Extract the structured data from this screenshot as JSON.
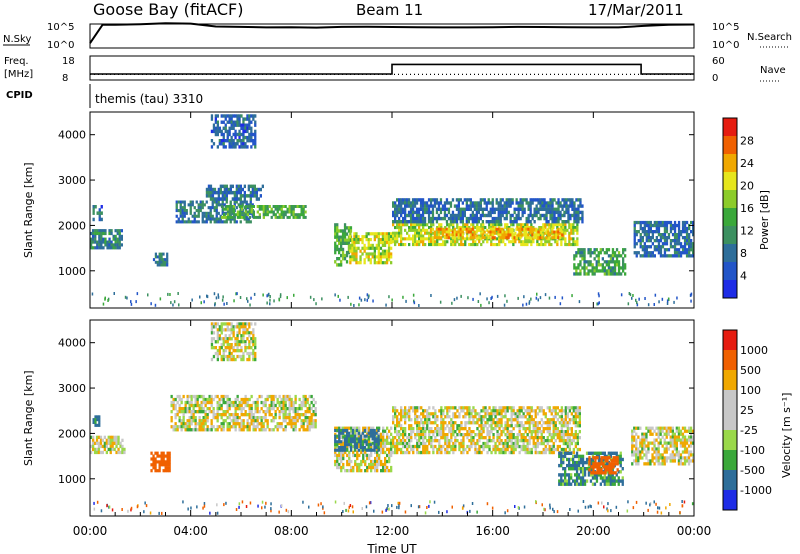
{
  "header": {
    "station": "Goose Bay (fitACF)",
    "beam": "Beam 11",
    "date": "17/Mar/2011"
  },
  "nsky_panel": {
    "left_label": "N.Sky",
    "right_label": "N.Search",
    "left_ticks": [
      "10^5",
      "10^0"
    ],
    "right_ticks": [
      "10^5",
      "10^0"
    ]
  },
  "freq_panel": {
    "left_label_top": "Freq.",
    "left_label_bottom": "[MHz]",
    "right_label": "Nave",
    "left_ticks": [
      "18",
      "8"
    ],
    "right_ticks": [
      "60",
      "0"
    ],
    "cpid_label": "CPID",
    "cpid_text": "themis (tau) 3310"
  },
  "power_panel": {
    "ylabel": "Slant Range [km]",
    "yticks": [
      "4000",
      "3000",
      "2000",
      "1000"
    ],
    "colorbar_label": "Power [dB]",
    "colorbar_ticks": [
      "28",
      "24",
      "20",
      "16",
      "12",
      "8",
      "4"
    ]
  },
  "velocity_panel": {
    "ylabel": "Slant Range [km]",
    "yticks": [
      "4000",
      "3000",
      "2000",
      "1000"
    ],
    "colorbar_label": "Velocity [m s⁻¹]",
    "colorbar_ticks": [
      "1000",
      "500",
      "100",
      "25",
      "-25",
      "-100",
      "-500",
      "-1000"
    ]
  },
  "xaxis": {
    "label": "Time UT",
    "ticks": [
      "00:00",
      "04:00",
      "08:00",
      "12:00",
      "16:00",
      "20:00",
      "00:00"
    ]
  },
  "colors": {
    "power_scale": [
      "#1e2ce6",
      "#2255c8",
      "#2e6e9a",
      "#3c9060",
      "#3aa83a",
      "#8ccc2a",
      "#e6e61c",
      "#f0a800",
      "#f06000",
      "#e61c10"
    ],
    "velocity_scale": [
      "#1e2ce6",
      "#2e6e9a",
      "#3aa83a",
      "#9ad84a",
      "#c8c8c8",
      "#c8c8c8",
      "#f0a800",
      "#f06000",
      "#e61c10"
    ]
  },
  "chart_data": [
    {
      "type": "line",
      "title": "N.Sky",
      "x_units": "hours UT",
      "x": [
        0,
        0.5,
        1,
        2,
        3,
        4,
        5,
        6,
        7,
        8,
        9,
        10,
        11,
        12,
        13,
        14,
        15,
        16,
        17,
        18,
        19,
        20,
        21,
        22,
        23,
        24
      ],
      "series": [
        {
          "name": "N.Sky",
          "values": [
            10,
            70000,
            70000,
            90000,
            140000,
            120000,
            30000,
            25000,
            20000,
            22000,
            18000,
            25000,
            28000,
            24000,
            22000,
            20000,
            20000,
            22000,
            25000,
            24000,
            22000,
            20000,
            20000,
            40000,
            70000,
            80000
          ]
        }
      ],
      "yscale": "log",
      "ylim": [
        1,
        100000
      ]
    },
    {
      "type": "line",
      "title": "Freq.",
      "x_units": "hours UT",
      "x": [
        0,
        12,
        12,
        21.9,
        21.9,
        24
      ],
      "series": [
        {
          "name": "Freq.",
          "values": [
            10.5,
            10.5,
            14.5,
            14.5,
            10.5,
            10.5
          ]
        },
        {
          "name": "Nave",
          "values": [
            14,
            14,
            14,
            14,
            14,
            14
          ]
        }
      ],
      "ylim": [
        8,
        18
      ],
      "y2lim": [
        0,
        60
      ]
    },
    {
      "type": "heatmap",
      "title": "Power [dB]",
      "xlabel": "Time UT",
      "ylabel": "Slant Range [km]",
      "xlim": [
        0,
        24
      ],
      "ylim": [
        180,
        4500
      ],
      "zlim": [
        0,
        30
      ],
      "regions": [
        {
          "t0": 0.0,
          "t1": 1.3,
          "r0": 1480,
          "r1": 1920,
          "power": 9
        },
        {
          "t0": 0.1,
          "t1": 0.5,
          "r0": 2100,
          "r1": 2450,
          "power": 6
        },
        {
          "t0": 2.5,
          "t1": 3.1,
          "r0": 1100,
          "r1": 1400,
          "power": 8
        },
        {
          "t0": 3.4,
          "t1": 6.5,
          "r0": 2050,
          "r1": 2550,
          "power": 8
        },
        {
          "t0": 5.2,
          "t1": 8.6,
          "r0": 2150,
          "r1": 2450,
          "power": 13
        },
        {
          "t0": 4.6,
          "t1": 6.9,
          "r0": 2550,
          "r1": 2900,
          "power": 7
        },
        {
          "t0": 4.8,
          "t1": 6.6,
          "r0": 3700,
          "r1": 4450,
          "power": 6
        },
        {
          "t0": 9.7,
          "t1": 10.4,
          "r0": 1100,
          "r1": 2050,
          "power": 13
        },
        {
          "t0": 10.3,
          "t1": 12.0,
          "r0": 1150,
          "r1": 1850,
          "power": 18
        },
        {
          "t0": 12.0,
          "t1": 19.4,
          "r0": 1550,
          "r1": 2050,
          "power": 18
        },
        {
          "t0": 13.5,
          "t1": 18.8,
          "r0": 1700,
          "r1": 1950,
          "power": 22
        },
        {
          "t0": 12.0,
          "t1": 19.6,
          "r0": 2050,
          "r1": 2600,
          "power": 7
        },
        {
          "t0": 19.2,
          "t1": 21.3,
          "r0": 900,
          "r1": 1500,
          "power": 12
        },
        {
          "t0": 21.6,
          "t1": 24.0,
          "r0": 1300,
          "r1": 2100,
          "power": 7
        }
      ]
    },
    {
      "type": "heatmap",
      "title": "Velocity [m s⁻¹]",
      "xlabel": "Time UT",
      "ylabel": "Slant Range [km]",
      "xlim": [
        0,
        24
      ],
      "ylim": [
        180,
        4500
      ],
      "zlim": [
        -1000,
        1000
      ],
      "regions": [
        {
          "t0": 0.0,
          "t1": 1.4,
          "r0": 1550,
          "r1": 1950,
          "velocity": 0
        },
        {
          "t0": 0.1,
          "t1": 0.4,
          "r0": 2150,
          "r1": 2400,
          "velocity": 150
        },
        {
          "t0": 2.4,
          "t1": 3.2,
          "r0": 1150,
          "r1": 1600,
          "velocity": -300
        },
        {
          "t0": 3.2,
          "t1": 9.0,
          "r0": 2050,
          "r1": 2850,
          "velocity": 0
        },
        {
          "t0": 4.8,
          "t1": 6.6,
          "r0": 3600,
          "r1": 4450,
          "velocity": 0
        },
        {
          "t0": 9.7,
          "t1": 12.0,
          "r0": 1150,
          "r1": 2150,
          "velocity": 0
        },
        {
          "t0": 9.7,
          "t1": 11.5,
          "r0": 1600,
          "r1": 2100,
          "velocity": 150
        },
        {
          "t0": 12.0,
          "t1": 19.5,
          "r0": 1550,
          "r1": 2600,
          "velocity": 0
        },
        {
          "t0": 18.6,
          "t1": 21.2,
          "r0": 850,
          "r1": 1600,
          "velocity": 120
        },
        {
          "t0": 19.8,
          "t1": 21.0,
          "r0": 1100,
          "r1": 1500,
          "velocity": -200
        },
        {
          "t0": 21.5,
          "t1": 24.0,
          "r0": 1300,
          "r1": 2150,
          "velocity": 0
        }
      ]
    }
  ]
}
